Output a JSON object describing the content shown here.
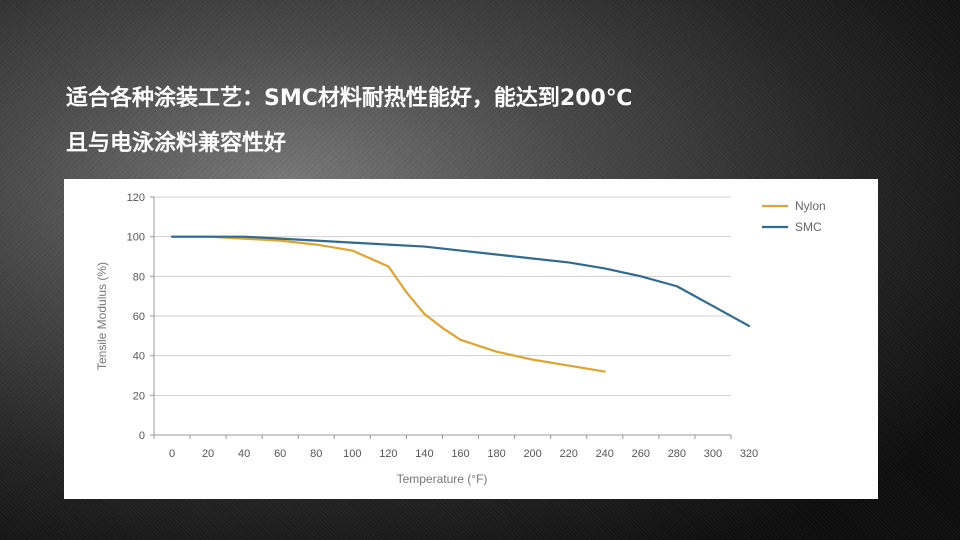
{
  "slide": {
    "line1": "适合各种涂装工艺：SMC材料耐热性能好，能达到200℃",
    "line2": "且与电泳涂料兼容性好"
  },
  "chart_data": {
    "type": "line",
    "xlabel": "Temperature (°F)",
    "ylabel": "Tensile Modulus (%)",
    "xlim": [
      0,
      320
    ],
    "ylim": [
      0,
      120
    ],
    "xticks": [
      0,
      20,
      40,
      60,
      80,
      100,
      120,
      140,
      160,
      180,
      200,
      220,
      240,
      260,
      280,
      300,
      320
    ],
    "yticks": [
      0,
      20,
      40,
      60,
      80,
      100,
      120
    ],
    "grid": true,
    "legend": "right",
    "series": [
      {
        "name": "Nylon",
        "color": "#e0a32e",
        "x": [
          0,
          20,
          40,
          60,
          80,
          100,
          120,
          130,
          140,
          150,
          160,
          180,
          200,
          220,
          240
        ],
        "y": [
          100,
          100,
          99,
          98,
          96,
          93,
          85,
          72,
          61,
          54,
          48,
          42,
          38,
          35,
          32
        ]
      },
      {
        "name": "SMC",
        "color": "#2f6b8f",
        "x": [
          0,
          20,
          40,
          60,
          80,
          100,
          120,
          140,
          160,
          180,
          200,
          220,
          240,
          260,
          280,
          300,
          320
        ],
        "y": [
          100,
          100,
          100,
          99,
          98,
          97,
          96,
          95,
          93,
          91,
          89,
          87,
          84,
          80,
          75,
          65,
          55
        ]
      }
    ]
  }
}
